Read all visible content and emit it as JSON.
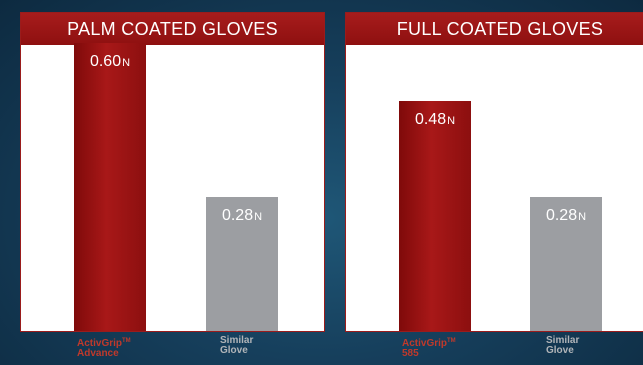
{
  "chart_data": [
    {
      "type": "bar",
      "title": "PALM COATED GLOVES",
      "unit": "N",
      "categories": [
        "ActivGrip™ Advance",
        "Similar Glove"
      ],
      "values": [
        0.6,
        0.28
      ],
      "value_labels": [
        "0.60",
        "0.28"
      ],
      "category_labels": [
        {
          "name": "ActivGrip",
          "mark": "TM",
          "line2": "Advance"
        },
        {
          "name": "Similar",
          "mark": "",
          "line2": "Glove"
        }
      ],
      "colors": [
        "#9b1414",
        "#9c9ea2"
      ],
      "ylim": [
        0,
        0.65
      ]
    },
    {
      "type": "bar",
      "title": "FULL COATED GLOVES",
      "unit": "N",
      "categories": [
        "ActivGrip™ 585",
        "Similar Glove"
      ],
      "values": [
        0.48,
        0.28
      ],
      "value_labels": [
        "0.48",
        "0.28"
      ],
      "category_labels": [
        {
          "name": "ActivGrip",
          "mark": "TM",
          "line2": "585"
        },
        {
          "name": "Similar",
          "mark": "",
          "line2": "Glove"
        }
      ],
      "colors": [
        "#9b1414",
        "#9c9ea2"
      ],
      "ylim": [
        0,
        0.65
      ]
    }
  ]
}
